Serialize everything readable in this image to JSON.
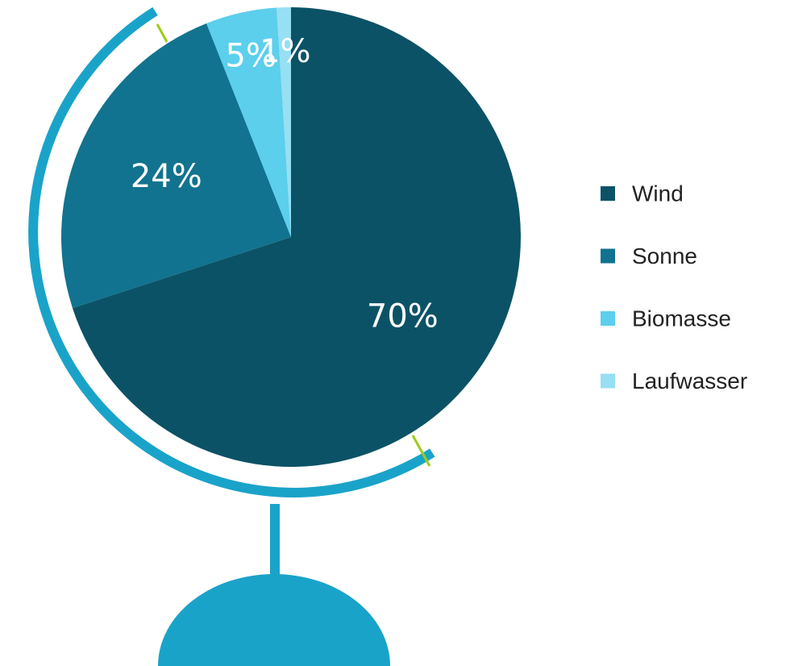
{
  "chart_data": {
    "type": "pie",
    "categories": [
      "Wind",
      "Sonne",
      "Biomasse",
      "Laufwasser"
    ],
    "values": [
      70,
      24,
      5,
      1
    ],
    "value_labels": [
      "70%",
      "24%",
      "5%",
      "1%"
    ],
    "colors": [
      "#0b5266",
      "#11738f",
      "#5ccfec",
      "#97dff3"
    ],
    "legend": "right"
  }
}
